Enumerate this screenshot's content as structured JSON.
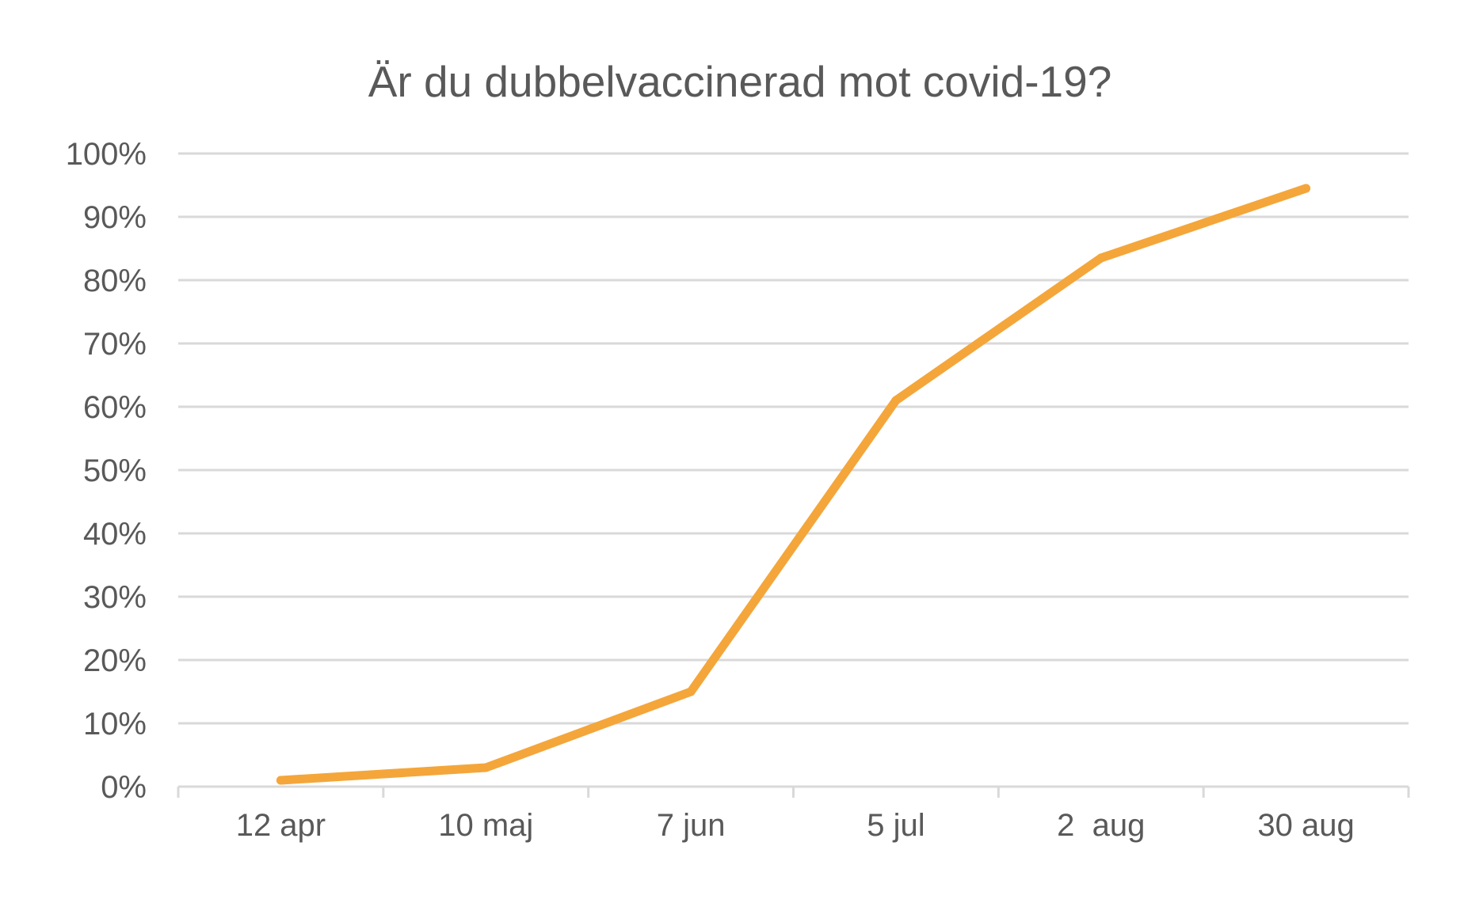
{
  "chart_data": {
    "type": "line",
    "title": "Är du dubbelvaccinerad mot covid-19?",
    "xlabel": "",
    "ylabel": "",
    "categories": [
      "12 apr",
      "10 maj",
      "7 jun",
      "5 jul",
      "2  aug",
      "30 aug"
    ],
    "series": [
      {
        "color": "#f4a63a",
        "values": [
          1,
          3,
          15,
          61,
          83.5,
          94.5
        ]
      }
    ],
    "ylim": [
      0,
      100
    ],
    "y_ticks": [
      0,
      10,
      20,
      30,
      40,
      50,
      60,
      70,
      80,
      90,
      100
    ],
    "y_tick_labels": [
      "0%",
      "10%",
      "20%",
      "30%",
      "40%",
      "50%",
      "60%",
      "70%",
      "80%",
      "90%",
      "100%"
    ],
    "grid": true,
    "legend": "none"
  }
}
